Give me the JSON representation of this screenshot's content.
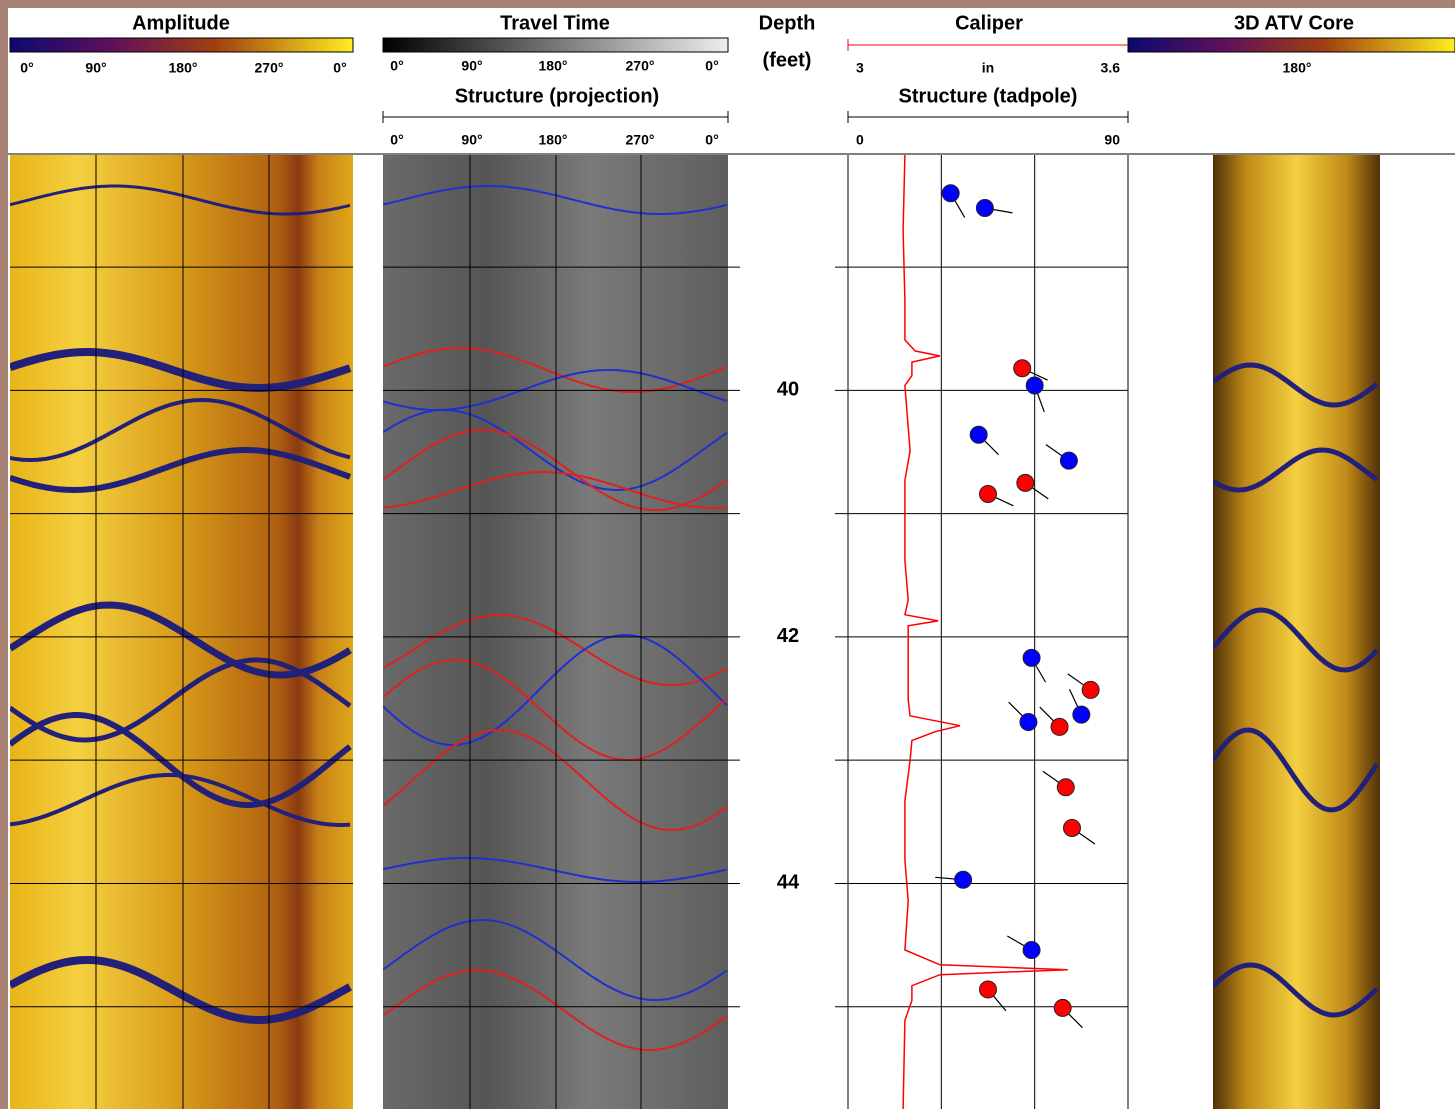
{
  "tracks": {
    "amplitude": {
      "title": "Amplitude",
      "ticks": [
        "0°",
        "90°",
        "180°",
        "270°",
        "0°"
      ]
    },
    "travel_time": {
      "title": "Travel Time",
      "ticks": [
        "0°",
        "90°",
        "180°",
        "270°",
        "0°"
      ],
      "subtitle": "Structure (projection)",
      "sub_ticks": [
        "0°",
        "90°",
        "180°",
        "270°",
        "0°"
      ]
    },
    "depth": {
      "title": "Depth",
      "unit": "(feet)",
      "lim": [
        38.09,
        45.83
      ],
      "ticks": [
        39,
        40,
        41,
        42,
        43,
        44,
        45
      ],
      "labels": [
        40,
        42,
        44
      ]
    },
    "caliper": {
      "title": "Caliper",
      "unit": "in",
      "lim": [
        3,
        3.6
      ],
      "ticks": [
        3,
        3.6
      ],
      "color": "#ff0000",
      "depths": [
        38.09,
        38.7,
        39.27,
        39.59,
        39.68,
        39.72,
        39.77,
        39.88,
        39.96,
        40.49,
        40.73,
        41.38,
        41.7,
        41.82,
        41.87,
        41.91,
        42.51,
        42.64,
        42.68,
        42.72,
        42.77,
        42.84,
        43.0,
        43.33,
        43.81,
        44.14,
        44.54,
        44.66,
        44.7,
        44.74,
        44.83,
        44.95,
        45.11,
        45.83
      ],
      "values": [
        3.122,
        3.118,
        3.122,
        3.122,
        3.144,
        3.197,
        3.137,
        3.137,
        3.122,
        3.133,
        3.122,
        3.122,
        3.129,
        3.122,
        3.193,
        3.129,
        3.129,
        3.133,
        3.186,
        3.24,
        3.186,
        3.137,
        3.133,
        3.122,
        3.122,
        3.129,
        3.122,
        3.197,
        3.471,
        3.197,
        3.137,
        3.137,
        3.122,
        3.118
      ]
    },
    "tadpole": {
      "title": "Structure (tadpole)",
      "lim": [
        0,
        90
      ],
      "ticks": [
        0,
        90
      ],
      "gridlines": [
        30,
        60
      ],
      "points": [
        {
          "depth": 38.4,
          "dip": 33,
          "azimuth": 150,
          "color": "#0000ff"
        },
        {
          "depth": 38.52,
          "dip": 44,
          "azimuth": 100,
          "color": "#0000ff"
        },
        {
          "depth": 39.82,
          "dip": 56,
          "azimuth": 115,
          "color": "#ff0000"
        },
        {
          "depth": 39.96,
          "dip": 60,
          "azimuth": 160,
          "color": "#0000ff"
        },
        {
          "depth": 40.36,
          "dip": 42,
          "azimuth": 135,
          "color": "#0000ff"
        },
        {
          "depth": 40.57,
          "dip": 71,
          "azimuth": 305,
          "color": "#0000ff"
        },
        {
          "depth": 40.75,
          "dip": 57,
          "azimuth": 125,
          "color": "#ff0000"
        },
        {
          "depth": 40.84,
          "dip": 45,
          "azimuth": 115,
          "color": "#ff0000"
        },
        {
          "depth": 42.17,
          "dip": 59,
          "azimuth": 150,
          "color": "#0000ff"
        },
        {
          "depth": 42.43,
          "dip": 78,
          "azimuth": 305,
          "color": "#ff0000"
        },
        {
          "depth": 42.63,
          "dip": 75,
          "azimuth": 335,
          "color": "#0000ff"
        },
        {
          "depth": 42.69,
          "dip": 58,
          "azimuth": 315,
          "color": "#0000ff"
        },
        {
          "depth": 42.73,
          "dip": 68,
          "azimuth": 315,
          "color": "#ff0000"
        },
        {
          "depth": 43.22,
          "dip": 70,
          "azimuth": 305,
          "color": "#ff0000"
        },
        {
          "depth": 43.55,
          "dip": 72,
          "azimuth": 125,
          "color": "#ff0000"
        },
        {
          "depth": 43.97,
          "dip": 37,
          "azimuth": 275,
          "color": "#0000ff"
        },
        {
          "depth": 44.54,
          "dip": 59,
          "azimuth": 300,
          "color": "#0000ff"
        },
        {
          "depth": 44.86,
          "dip": 45,
          "azimuth": 140,
          "color": "#ff0000"
        },
        {
          "depth": 45.01,
          "dip": 69,
          "azimuth": 135,
          "color": "#ff0000"
        }
      ]
    },
    "core": {
      "title": "3D ATV Core",
      "ticks": [
        "180°"
      ]
    }
  }
}
